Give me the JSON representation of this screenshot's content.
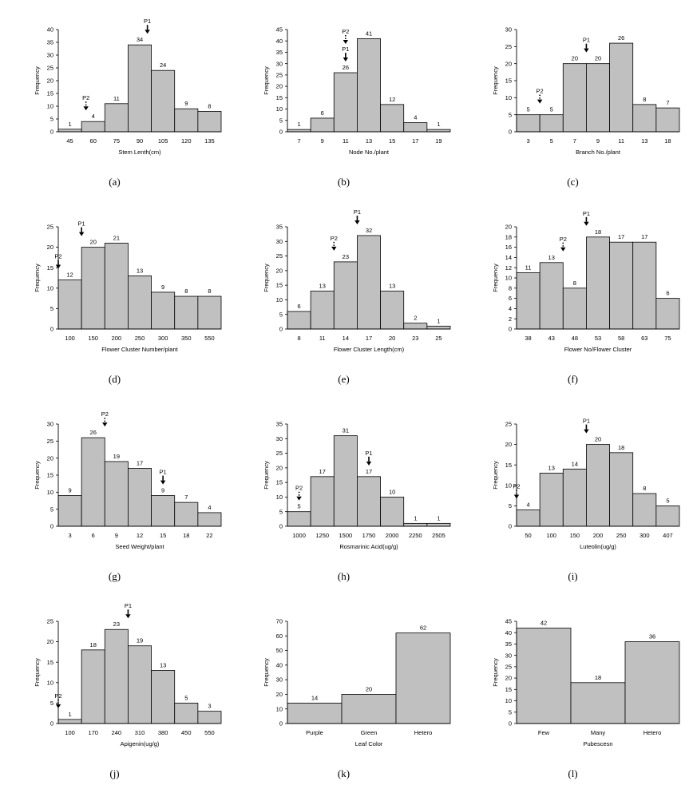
{
  "chart_data": [
    {
      "type": "bar",
      "caption": "(a)",
      "categories": [
        "45",
        "60",
        "75",
        "90",
        "105",
        "120",
        "135"
      ],
      "values": [
        1,
        4,
        11,
        34,
        24,
        9,
        8
      ],
      "xlabel": "Stem Lenth(cm)",
      "ylabel": "Frequency",
      "ylim": [
        0,
        40
      ],
      "ytick_step": 5,
      "markers": [
        {
          "label": "P1",
          "index": 3,
          "style": "solid",
          "pos": 0.83
        },
        {
          "label": "P2",
          "index": 1,
          "style": "dotted",
          "pos": 0.19
        }
      ]
    },
    {
      "type": "bar",
      "caption": "(b)",
      "categories": [
        "7",
        "9",
        "11",
        "13",
        "15",
        "17",
        "19"
      ],
      "values": [
        1,
        6,
        26,
        41,
        12,
        4,
        1
      ],
      "xlabel": "Node No./plant",
      "ylabel": "Frequency",
      "ylim": [
        0,
        45
      ],
      "ytick_step": 5,
      "markers": [
        {
          "label": "P1",
          "index": 2,
          "style": "solid",
          "pos": 0.5
        },
        {
          "label": "P2",
          "index": 2,
          "style": "dotted",
          "pos": 0.5
        }
      ]
    },
    {
      "type": "bar",
      "caption": "(c)",
      "categories": [
        "3",
        "5",
        "7",
        "9",
        "11",
        "13",
        "18"
      ],
      "values": [
        5,
        5,
        20,
        20,
        26,
        8,
        7
      ],
      "xlabel": "Branch No./plant",
      "ylabel": "Frequency",
      "ylim": [
        0,
        30
      ],
      "ytick_step": 5,
      "markers": [
        {
          "label": "P1",
          "index": 3,
          "style": "solid",
          "pos": 0.0
        },
        {
          "label": "P2",
          "index": 1,
          "style": "dotted",
          "pos": 0.0
        }
      ]
    },
    {
      "type": "bar",
      "caption": "(d)",
      "categories": [
        "100",
        "150",
        "200",
        "250",
        "300",
        "350",
        "550"
      ],
      "values": [
        12,
        20,
        21,
        13,
        9,
        8,
        8
      ],
      "xlabel": "Flower Cluster Number/plant",
      "ylabel": "Frequency",
      "ylim": [
        0,
        25
      ],
      "ytick_step": 5,
      "markers": [
        {
          "label": "P1",
          "index": 1,
          "style": "solid",
          "pos": 0.0
        },
        {
          "label": "P2",
          "index": 0,
          "style": "solid",
          "pos": 0.0
        }
      ]
    },
    {
      "type": "bar",
      "caption": "(e)",
      "categories": [
        "8",
        "11",
        "14",
        "17",
        "20",
        "23",
        "25"
      ],
      "values": [
        6,
        13,
        23,
        32,
        13,
        2,
        1
      ],
      "xlabel": "Flower Cluster Length(cm)",
      "ylabel": "Frequency",
      "ylim": [
        0,
        35
      ],
      "ytick_step": 5,
      "markers": [
        {
          "label": "P1",
          "index": 3,
          "style": "solid",
          "pos": 0.0
        },
        {
          "label": "P2",
          "index": 2,
          "style": "dotted",
          "pos": 0.0
        }
      ]
    },
    {
      "type": "bar",
      "caption": "(f)",
      "categories": [
        "38",
        "43",
        "48",
        "53",
        "58",
        "63",
        "75"
      ],
      "values": [
        11,
        13,
        8,
        18,
        17,
        17,
        6
      ],
      "xlabel": "Flower No/Flower Cluster",
      "ylabel": "Frequency",
      "ylim": [
        0,
        20
      ],
      "ytick_step": 2,
      "markers": [
        {
          "label": "P1",
          "index": 3,
          "style": "solid",
          "pos": 0.0
        },
        {
          "label": "P2",
          "index": 2,
          "style": "dotted",
          "pos": 0.0
        }
      ]
    },
    {
      "type": "bar",
      "caption": "(g)",
      "categories": [
        "3",
        "6",
        "9",
        "12",
        "15",
        "18",
        "22"
      ],
      "values": [
        9,
        26,
        19,
        17,
        9,
        7,
        4
      ],
      "xlabel": "Seed Weight/plant",
      "ylabel": "Frequency",
      "ylim": [
        0,
        30
      ],
      "ytick_step": 5,
      "markers": [
        {
          "label": "P1",
          "index": 4,
          "style": "solid",
          "pos": 0.5
        },
        {
          "label": "P2",
          "index": 1,
          "style": "dotted",
          "pos": 1.0
        }
      ]
    },
    {
      "type": "bar",
      "caption": "(h)",
      "categories": [
        "1000",
        "1250",
        "1500",
        "1750",
        "2000",
        "2250",
        "2505"
      ],
      "values": [
        5,
        17,
        31,
        17,
        10,
        1,
        1
      ],
      "xlabel": "Rosmarinic Acid(ug/g)",
      "ylabel": "Frequency",
      "ylim": [
        0,
        35
      ],
      "ytick_step": 5,
      "markers": [
        {
          "label": "P1",
          "index": 3,
          "style": "solid",
          "pos": 0.5
        },
        {
          "label": "P2",
          "index": 0,
          "style": "dotted",
          "pos": 0.5
        }
      ]
    },
    {
      "type": "bar",
      "caption": "(i)",
      "categories": [
        "50",
        "100",
        "150",
        "200",
        "250",
        "300",
        "407"
      ],
      "values": [
        4,
        13,
        14,
        20,
        18,
        8,
        5
      ],
      "xlabel": "Luteolin(ug/g)",
      "ylabel": "Frequency",
      "ylim": [
        0,
        25
      ],
      "ytick_step": 5,
      "markers": [
        {
          "label": "P1",
          "index": 3,
          "style": "solid",
          "pos": 0.0
        },
        {
          "label": "P2",
          "index": 0,
          "style": "dotted",
          "pos": 0.0
        }
      ]
    },
    {
      "type": "bar",
      "caption": "(j)",
      "categories": [
        "100",
        "170",
        "240",
        "310",
        "380",
        "450",
        "550"
      ],
      "values": [
        1,
        18,
        23,
        19,
        13,
        5,
        3
      ],
      "xlabel": "Apigenin(ug/g)",
      "ylabel": "Frequency",
      "ylim": [
        0,
        25
      ],
      "ytick_step": 5,
      "markers": [
        {
          "label": "P1",
          "index": 3,
          "style": "solid",
          "pos": 0.0
        },
        {
          "label": "P2",
          "index": 0,
          "style": "dotted",
          "pos": 0.0
        }
      ]
    },
    {
      "type": "bar",
      "caption": "(k)",
      "categories": [
        "Purple",
        "Green",
        "Hetero"
      ],
      "values": [
        14,
        20,
        62
      ],
      "xlabel": "Leaf Color",
      "ylabel": "Frequency",
      "ylim": [
        0,
        70
      ],
      "ytick_step": 10,
      "markers": []
    },
    {
      "type": "bar",
      "caption": "(l)",
      "categories": [
        "Few",
        "Many",
        "Hetero"
      ],
      "values": [
        42,
        18,
        36
      ],
      "xlabel": "Pubescesn",
      "ylabel": "Frequency",
      "ylim": [
        0,
        45
      ],
      "ytick_step": 5,
      "markers": []
    }
  ]
}
